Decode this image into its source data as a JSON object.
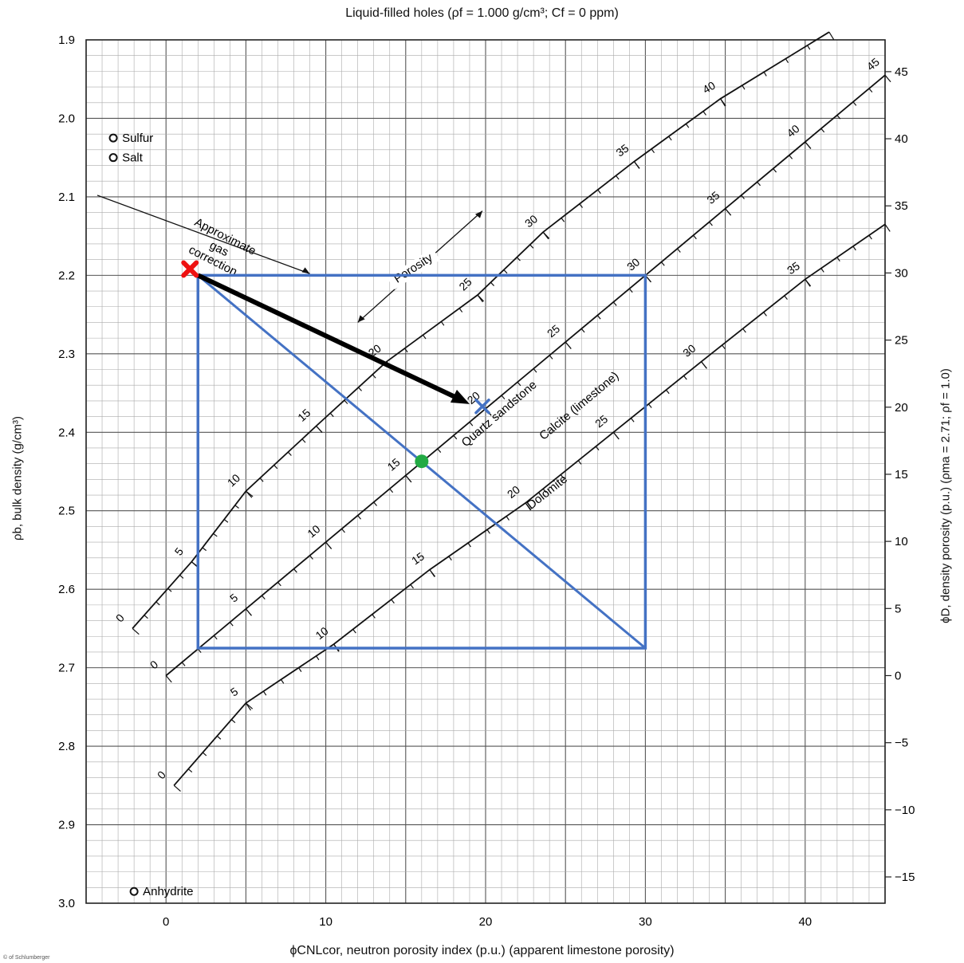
{
  "chart_data": {
    "type": "scatter",
    "title": "Liquid-filled holes (ρf = 1.000 g/cm³; Cf = 0 ppm)",
    "xlabel": "ϕCNLcor, neutron porosity index (p.u.) (apparent limestone porosity)",
    "ylabel": "ρb, bulk density (g/cm³)",
    "y2label": "ϕD, density porosity (p.u.) (ρma = 2.71; ρf = 1.0)",
    "xlim": [
      -5,
      45
    ],
    "ylim": [
      3.0,
      1.9
    ],
    "x_ticks": [
      0,
      10,
      20,
      30,
      40
    ],
    "y_ticks": [
      1.9,
      2.0,
      2.1,
      2.2,
      2.3,
      2.4,
      2.5,
      2.6,
      2.7,
      2.8,
      2.9,
      3.0
    ],
    "y2_ticks": [
      45,
      40,
      35,
      30,
      25,
      20,
      15,
      10,
      5,
      0,
      -5,
      -10,
      -15
    ],
    "grid": true,
    "lithology_lines": [
      {
        "name": "Quartz sandstone",
        "label_position": [
          21,
          2.38
        ],
        "porosity_labels": [
          0,
          5,
          10,
          15,
          20,
          25,
          30,
          35,
          40
        ],
        "points": [
          {
            "porosity": 0,
            "x": -2.1,
            "y": 2.65
          },
          {
            "porosity": 5,
            "x": 1.6,
            "y": 2.565
          },
          {
            "porosity": 10,
            "x": 5.0,
            "y": 2.475
          },
          {
            "porosity": 15,
            "x": 9.4,
            "y": 2.392
          },
          {
            "porosity": 20,
            "x": 13.8,
            "y": 2.31
          },
          {
            "porosity": 25,
            "x": 19.5,
            "y": 2.225
          },
          {
            "porosity": 30,
            "x": 23.6,
            "y": 2.145
          },
          {
            "porosity": 35,
            "x": 29.3,
            "y": 2.055
          },
          {
            "porosity": 40,
            "x": 34.7,
            "y": 1.975
          },
          {
            "porosity": 45,
            "x": 41.5,
            "y": 1.89
          }
        ]
      },
      {
        "name": "Calcite (limestone)",
        "label_position": [
          26,
          2.37
        ],
        "porosity_labels": [
          0,
          5,
          10,
          15,
          20,
          25,
          30,
          35,
          40,
          45
        ],
        "points": [
          {
            "porosity": 0,
            "x": 0,
            "y": 2.71
          },
          {
            "porosity": 5,
            "x": 5,
            "y": 2.625
          },
          {
            "porosity": 10,
            "x": 10,
            "y": 2.54
          },
          {
            "porosity": 15,
            "x": 15,
            "y": 2.455
          },
          {
            "porosity": 20,
            "x": 20,
            "y": 2.37
          },
          {
            "porosity": 25,
            "x": 25,
            "y": 2.285
          },
          {
            "porosity": 30,
            "x": 30,
            "y": 2.2
          },
          {
            "porosity": 35,
            "x": 35,
            "y": 2.115
          },
          {
            "porosity": 40,
            "x": 40,
            "y": 2.03
          },
          {
            "porosity": 45,
            "x": 45,
            "y": 1.945
          }
        ]
      },
      {
        "name": "Dolomite",
        "label_position": [
          24,
          2.48
        ],
        "porosity_labels": [
          0,
          5,
          10,
          15,
          20,
          25,
          30,
          35
        ],
        "points": [
          {
            "porosity": 0,
            "x": 0.5,
            "y": 2.85
          },
          {
            "porosity": 5,
            "x": 5,
            "y": 2.745
          },
          {
            "porosity": 10,
            "x": 10.5,
            "y": 2.67
          },
          {
            "porosity": 15,
            "x": 16.5,
            "y": 2.575
          },
          {
            "porosity": 20,
            "x": 22.5,
            "y": 2.49
          },
          {
            "porosity": 25,
            "x": 28,
            "y": 2.4
          },
          {
            "porosity": 30,
            "x": 33.5,
            "y": 2.31
          },
          {
            "porosity": 35,
            "x": 40,
            "y": 2.205
          },
          {
            "porosity": 40,
            "x": 45,
            "y": 2.135
          }
        ]
      }
    ],
    "minerals": [
      {
        "name": "Sulfur",
        "x": -3.3,
        "y": 2.025
      },
      {
        "name": "Salt",
        "x": -3.3,
        "y": 2.05
      },
      {
        "name": "Anhydrite",
        "x": -2.0,
        "y": 2.985
      }
    ],
    "annotations": {
      "gas_correction": {
        "text_lines": [
          "Approximate",
          "gas",
          "correction"
        ]
      },
      "porosity_arrow": {
        "text": "Porosity"
      }
    },
    "overlays": {
      "rectangle": {
        "x": [
          2,
          30
        ],
        "y": [
          2.2,
          2.675
        ],
        "color": "#4472C4"
      },
      "diagonal": {
        "from": [
          2,
          2.2
        ],
        "to": [
          30,
          2.675
        ],
        "color": "#4472C4"
      },
      "red_point": {
        "x": 1.5,
        "y": 2.192,
        "marker": "x",
        "color": "#EE1111"
      },
      "blue_point": {
        "x": 19.8,
        "y": 2.367,
        "marker": "x",
        "color": "#4472C4"
      },
      "green_point": {
        "x": 16.0,
        "y": 2.437,
        "marker": "circle",
        "color": "#22AA44"
      },
      "arrow": {
        "from": [
          2,
          2.2
        ],
        "to": [
          19.0,
          2.364
        ],
        "color": "#000000"
      }
    }
  },
  "footer": {
    "copyright": "© of Schlumberger"
  }
}
